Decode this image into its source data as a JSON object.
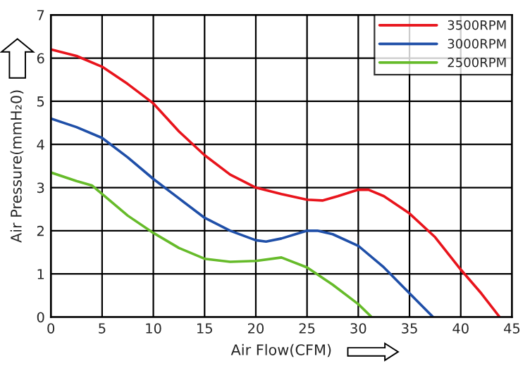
{
  "chart_data": {
    "type": "line",
    "xlabel": "Air Flow(CFM)",
    "ylabel": "Air Pressure(mmH₂0)",
    "xlim": [
      0,
      45
    ],
    "xticks": [
      0,
      5,
      10,
      15,
      20,
      25,
      30,
      35,
      40,
      45
    ],
    "ylim": [
      0,
      7
    ],
    "yticks": [
      0,
      1,
      2,
      3,
      4,
      5,
      6,
      7
    ],
    "grid": true,
    "legend": "top right",
    "marker": "none",
    "line_style": "solid",
    "series": [
      {
        "name": "3500RPM",
        "color": "#e8141c",
        "x": [
          0,
          2.5,
          5,
          7.5,
          10,
          12.5,
          15,
          17.5,
          20,
          22.5,
          25,
          26.5,
          28,
          30,
          31,
          32.5,
          35,
          37.5,
          40,
          42,
          43.8
        ],
        "values": [
          6.2,
          6.05,
          5.8,
          5.4,
          4.95,
          4.3,
          3.75,
          3.3,
          3.0,
          2.85,
          2.72,
          2.7,
          2.8,
          2.95,
          2.95,
          2.8,
          2.4,
          1.85,
          1.1,
          0.55,
          0
        ]
      },
      {
        "name": "3000RPM",
        "color": "#1f4fa8",
        "x": [
          0,
          2.5,
          5,
          7.5,
          10,
          12.5,
          15,
          17.5,
          20,
          21,
          22.5,
          25,
          26,
          27.5,
          30,
          32.5,
          35,
          37.3
        ],
        "values": [
          4.6,
          4.4,
          4.15,
          3.7,
          3.2,
          2.75,
          2.3,
          2.0,
          1.78,
          1.75,
          1.82,
          2.0,
          2.0,
          1.92,
          1.65,
          1.15,
          0.55,
          0
        ]
      },
      {
        "name": "2500RPM",
        "color": "#66bb2a",
        "x": [
          0,
          2.5,
          4,
          5,
          7.5,
          10,
          12.5,
          15,
          17.5,
          20,
          22.5,
          25,
          27.5,
          30,
          31.3
        ],
        "values": [
          3.35,
          3.15,
          3.05,
          2.85,
          2.35,
          1.95,
          1.6,
          1.35,
          1.28,
          1.3,
          1.38,
          1.15,
          0.75,
          0.3,
          0
        ]
      }
    ]
  }
}
